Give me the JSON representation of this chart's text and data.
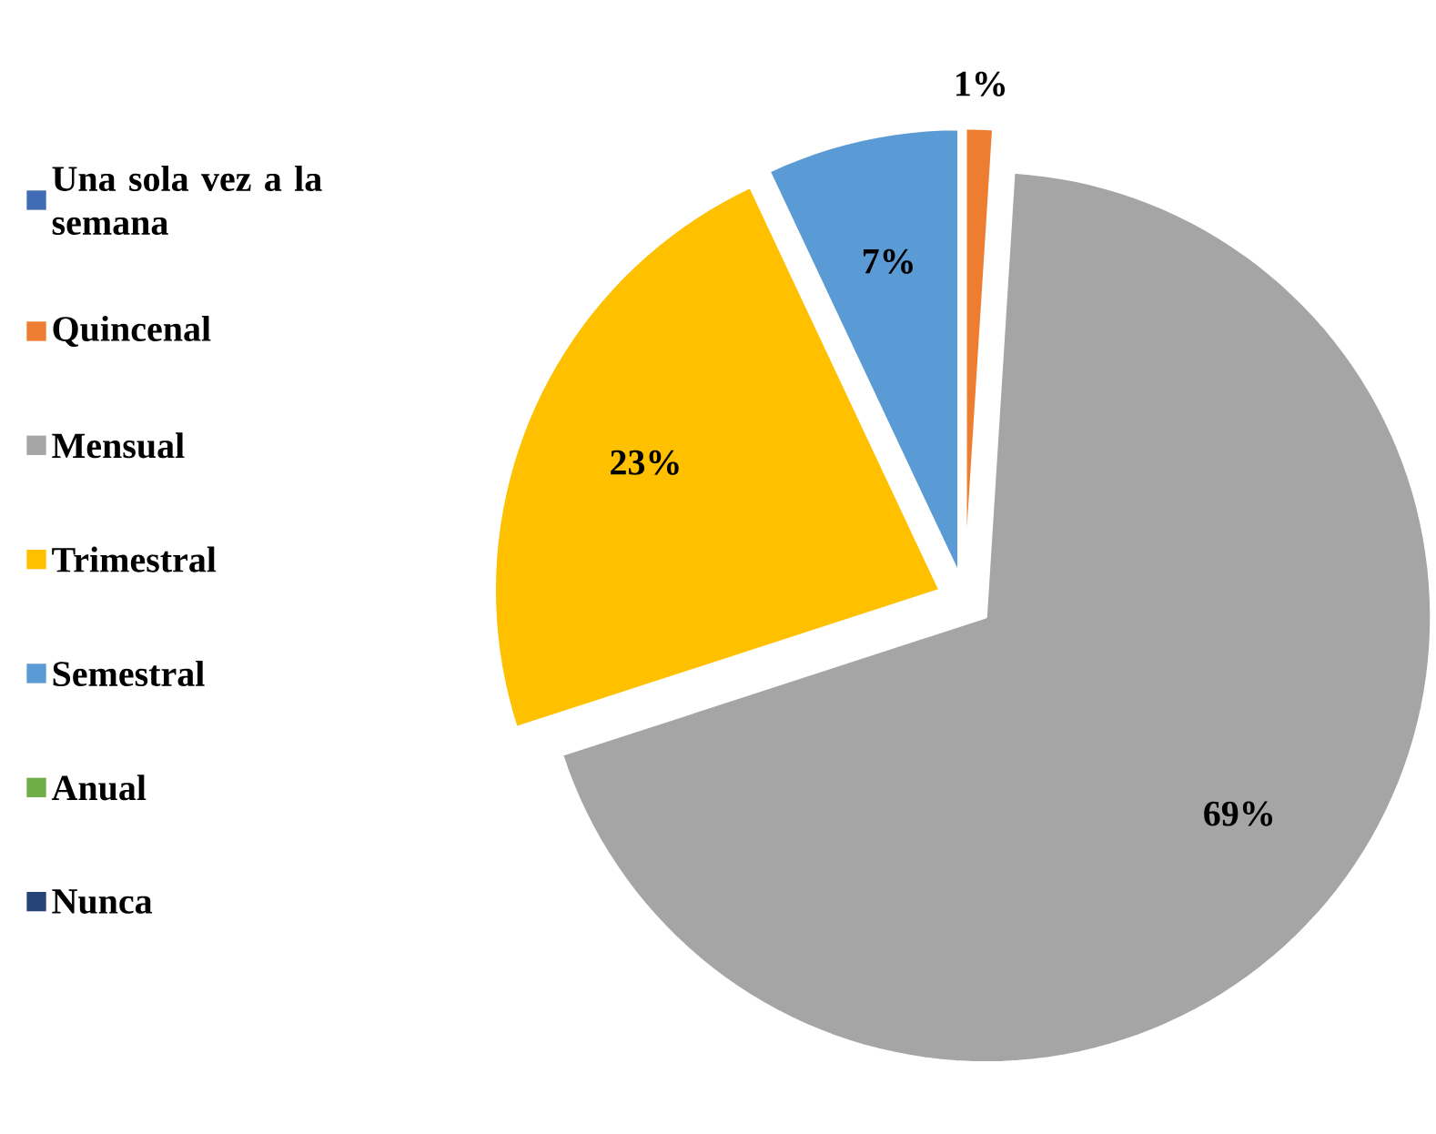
{
  "chart_data": {
    "type": "pie",
    "categories": [
      "Una sola vez a la semana",
      "Quincenal",
      "Mensual",
      "Trimestral",
      "Semestral",
      "Anual",
      "Nunca"
    ],
    "values": [
      0,
      1,
      69,
      23,
      7,
      0,
      0
    ],
    "value_labels": [
      null,
      "1%",
      "69%",
      "23%",
      "7%",
      null,
      null
    ],
    "colors": [
      "#3f6cb5",
      "#ed7d31",
      "#a5a5a5",
      "#ffc000",
      "#5b9bd5",
      "#70ad47",
      "#264478"
    ],
    "legend": "left"
  }
}
